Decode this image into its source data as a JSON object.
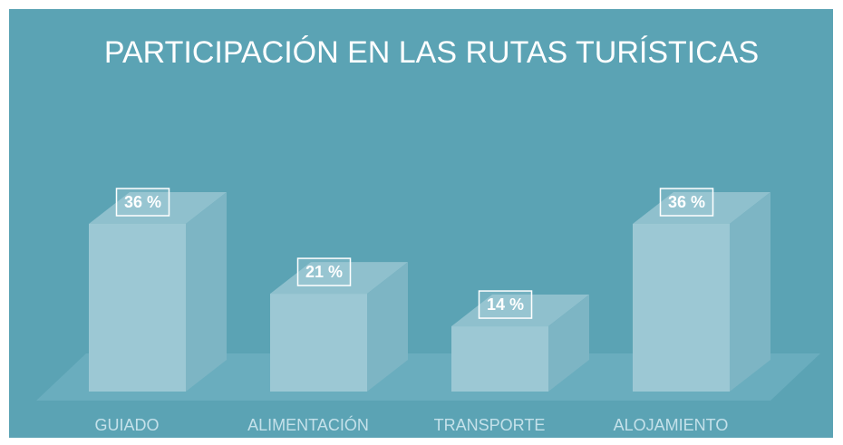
{
  "chart_data": {
    "type": "bar3d",
    "title": "PARTICIPACIÓN EN LAS RUTAS TURÍSTICAS",
    "categories": [
      "GUIADO",
      "ALIMENTACIÓN",
      "TRANSPORTE",
      "ALOJAMIENTO"
    ],
    "values": [
      36,
      21,
      14,
      36
    ],
    "value_labels": [
      "36 %",
      "21 %",
      "14 %",
      "36 %"
    ],
    "color": "#9cc8d4"
  }
}
